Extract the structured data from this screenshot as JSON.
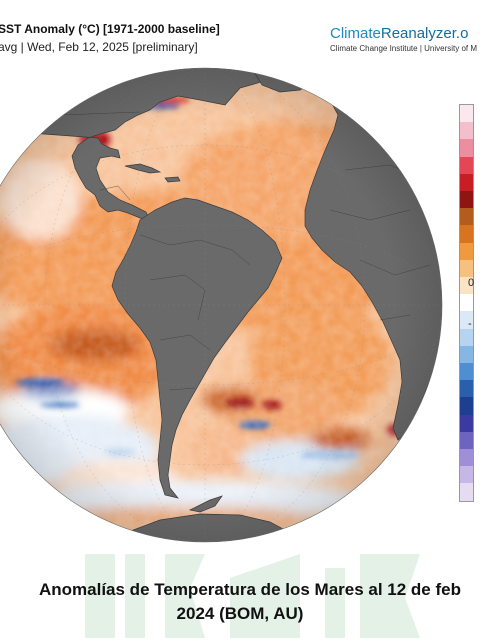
{
  "header": {
    "title": "SST Anomaly (°C) [1971-2000 baseline]",
    "subtitle": "avg | Wed, Feb 12, 2025 [preliminary]"
  },
  "brand": {
    "name_a": "Climate",
    "name_b": "Reanalyzer.o",
    "sub": "Climate Change Institute | University of M"
  },
  "colorbar": {
    "labels": [
      "0",
      "-"
    ],
    "colors": [
      "#fbe7ee",
      "#f4bfcc",
      "#ec8ea0",
      "#e34755",
      "#c81d25",
      "#8f1414",
      "#b45c1e",
      "#d8731f",
      "#ef9a3e",
      "#f6c07f",
      "#fce3c4",
      "#ffffff",
      "#dbe8f5",
      "#b6d4ef",
      "#86b6e2",
      "#4f8fd1",
      "#2a5fae",
      "#1d3f8f",
      "#3b3a9e",
      "#6e63bf",
      "#9e8fd6",
      "#c7b7e6",
      "#e6dcf2"
    ]
  },
  "caption": {
    "line1": "Anomalías de Temperatura de los Mares al 12 de feb",
    "line2": "2024 (BOM, AU)"
  }
}
